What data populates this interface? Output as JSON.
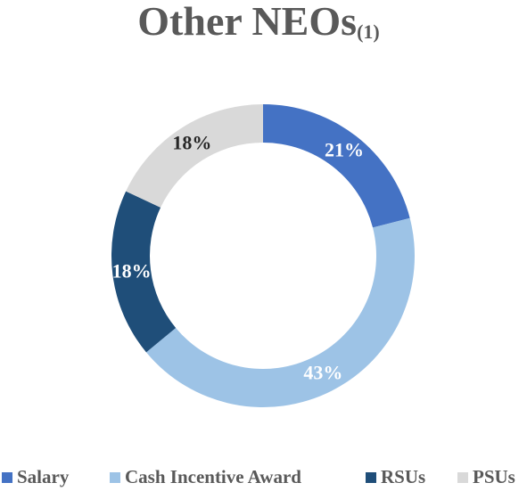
{
  "chart_data": {
    "type": "pie",
    "title": "Other NEOs",
    "title_note": "(1)",
    "categories": [
      "Salary",
      "Cash Incentive Award",
      "RSUs",
      "PSUs"
    ],
    "values": [
      21,
      43,
      18,
      18
    ],
    "value_labels": [
      "21%",
      "43%",
      "18%",
      "18%"
    ],
    "colors": [
      "#4472c4",
      "#9dc3e6",
      "#1f4e79",
      "#d9d9d9"
    ],
    "label_colors": [
      "#ffffff",
      "#ffffff",
      "#ffffff",
      "#262626"
    ],
    "legend": "bottom"
  }
}
